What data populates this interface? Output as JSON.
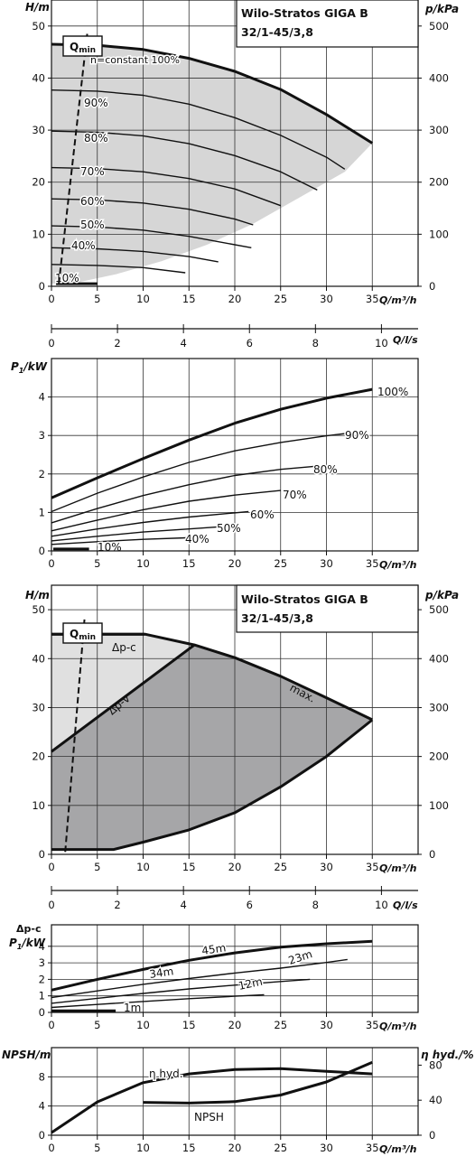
{
  "colors": {
    "ink": "#111111",
    "grid": "#333333",
    "fill_light": "#d6d6d6",
    "fill_dark": "#a6a6a8",
    "fill_pale": "#e0e0e0"
  },
  "chart_data": [
    {
      "id": "hq_variable_speed",
      "type": "line",
      "title": "Wilo-Stratos GIGA B",
      "subtitle": "32/1-45/3,8",
      "xlabel": "Q/m³/h",
      "ylabel": "H/m",
      "y2label": "p/kPa",
      "xlim": [
        0,
        40
      ],
      "ylim": [
        0,
        55
      ],
      "y2lim": [
        0,
        550
      ],
      "xticks": [
        0,
        5,
        10,
        15,
        20,
        25,
        30,
        35
      ],
      "yticks": [
        0,
        10,
        20,
        30,
        40,
        50
      ],
      "y2ticks": [
        0,
        100,
        200,
        300,
        400,
        500
      ],
      "grid": true,
      "qmin_label": "Q",
      "qmin_sub": "min",
      "qmin_line": [
        [
          0.8,
          0.5
        ],
        [
          3.9,
          48.5
        ]
      ],
      "op_range": [
        [
          0,
          46.5
        ],
        [
          5,
          46.3
        ],
        [
          10,
          45.5
        ],
        [
          15,
          43.8
        ],
        [
          20,
          41.3
        ],
        [
          25,
          37.8
        ],
        [
          30,
          33
        ],
        [
          35,
          27.5
        ],
        [
          32,
          22
        ],
        [
          27,
          17
        ],
        [
          22,
          12
        ],
        [
          17,
          8
        ],
        [
          12,
          4.8
        ],
        [
          7,
          2.3
        ],
        [
          3,
          0.8
        ],
        [
          0,
          0.5
        ]
      ],
      "series": [
        {
          "name": "n=constant 100%",
          "bold": true,
          "x": [
            0,
            5,
            10,
            15,
            20,
            25,
            30,
            35
          ],
          "y": [
            46.5,
            46.3,
            45.5,
            43.8,
            41.3,
            37.8,
            33,
            27.5
          ]
        },
        {
          "name": "90%",
          "x": [
            0,
            5,
            10,
            15,
            20,
            25,
            30,
            32
          ],
          "y": [
            37.7,
            37.5,
            36.7,
            35,
            32.4,
            29,
            24.8,
            22.5
          ]
        },
        {
          "name": "80%",
          "x": [
            0,
            5,
            10,
            15,
            20,
            25,
            29
          ],
          "y": [
            29.8,
            29.6,
            28.9,
            27.4,
            25.1,
            22,
            18.5
          ]
        },
        {
          "name": "70%",
          "x": [
            0,
            5,
            10,
            15,
            20,
            25
          ],
          "y": [
            22.8,
            22.6,
            22,
            20.7,
            18.7,
            15.5
          ]
        },
        {
          "name": "60%",
          "x": [
            0,
            5,
            10,
            15,
            20,
            22
          ],
          "y": [
            16.8,
            16.6,
            16,
            14.8,
            12.9,
            11.8
          ]
        },
        {
          "name": "50%",
          "x": [
            0,
            5,
            10,
            15,
            21.8
          ],
          "y": [
            11.6,
            11.4,
            10.8,
            9.6,
            7.4
          ]
        },
        {
          "name": "40%",
          "x": [
            0,
            5,
            10,
            15,
            18.2
          ],
          "y": [
            7.4,
            7.2,
            6.7,
            5.7,
            4.7
          ]
        },
        {
          "name": "",
          "x": [
            0,
            5,
            10,
            14.6
          ],
          "y": [
            4.2,
            4,
            3.6,
            2.6
          ]
        },
        {
          "name": "10%",
          "bold": true,
          "x": [
            0.5,
            5
          ],
          "y": [
            0.5,
            0.5
          ]
        }
      ]
    },
    {
      "id": "q_ls_axis_1",
      "type": "axis",
      "xlabel": "Q/l/s",
      "xlim": [
        0,
        11.111
      ],
      "xticks": [
        0,
        2,
        4,
        6,
        8,
        10
      ]
    },
    {
      "id": "power",
      "type": "line",
      "xlabel": "Q/m³/h",
      "ylabel_main": "P",
      "ylabel_sub": "1",
      "ylabel_unit": "/kW",
      "xlim": [
        0,
        40
      ],
      "ylim": [
        0,
        5
      ],
      "xticks": [
        0,
        5,
        10,
        15,
        20,
        25,
        30,
        35
      ],
      "yticks": [
        0,
        1,
        2,
        3,
        4
      ],
      "grid": true,
      "series": [
        {
          "name": "100%",
          "bold": true,
          "x": [
            0,
            5,
            10,
            15,
            20,
            25,
            30,
            35
          ],
          "y": [
            1.38,
            1.9,
            2.4,
            2.88,
            3.32,
            3.68,
            3.97,
            4.2
          ]
        },
        {
          "name": "90%",
          "x": [
            0,
            5,
            10,
            15,
            20,
            25,
            30,
            32
          ],
          "y": [
            1.02,
            1.5,
            1.92,
            2.3,
            2.6,
            2.82,
            2.99,
            3.05
          ]
        },
        {
          "name": "80%",
          "x": [
            0,
            5,
            10,
            15,
            20,
            25,
            28.8
          ],
          "y": [
            0.73,
            1.1,
            1.44,
            1.72,
            1.96,
            2.12,
            2.2
          ]
        },
        {
          "name": "70%",
          "x": [
            0,
            5,
            10,
            15,
            20,
            25
          ],
          "y": [
            0.52,
            0.8,
            1.07,
            1.29,
            1.45,
            1.57
          ]
        },
        {
          "name": "60%",
          "x": [
            0,
            5,
            10,
            15,
            21.5
          ],
          "y": [
            0.38,
            0.57,
            0.74,
            0.88,
            1.02
          ]
        },
        {
          "name": "50%",
          "x": [
            0,
            5,
            10,
            15,
            18
          ],
          "y": [
            0.26,
            0.38,
            0.49,
            0.57,
            0.62
          ]
        },
        {
          "name": "40%",
          "x": [
            0,
            5,
            10,
            14.7
          ],
          "y": [
            0.17,
            0.24,
            0.3,
            0.34
          ]
        },
        {
          "name": "10%",
          "bold": true,
          "x": [
            0.2,
            4.1
          ],
          "y": [
            0.05,
            0.05
          ]
        }
      ]
    },
    {
      "id": "hq_control_modes",
      "type": "area",
      "title": "Wilo-Stratos GIGA B",
      "subtitle": "32/1-45/3,8",
      "xlabel": "Q/m³/h",
      "ylabel": "H/m",
      "y2label": "p/kPa",
      "xlim": [
        0,
        40
      ],
      "ylim": [
        0,
        55
      ],
      "y2lim": [
        0,
        550
      ],
      "xticks": [
        0,
        5,
        10,
        15,
        20,
        25,
        30,
        35
      ],
      "yticks": [
        0,
        10,
        20,
        30,
        40,
        50
      ],
      "y2ticks": [
        0,
        100,
        200,
        300,
        400,
        500
      ],
      "grid": true,
      "qmin_label": "Q",
      "qmin_sub": "min",
      "qmin_line": [
        [
          1.5,
          0.5
        ],
        [
          3.6,
          48
        ]
      ],
      "dpc_region": [
        [
          0,
          45
        ],
        [
          10.2,
          45
        ],
        [
          15.6,
          42.8
        ],
        [
          0,
          21
        ]
      ],
      "dpv_region": [
        [
          0,
          21
        ],
        [
          15.6,
          42.8
        ],
        [
          20,
          40.2
        ],
        [
          25,
          36.4
        ],
        [
          30,
          32
        ],
        [
          35,
          27.5
        ],
        [
          30,
          20
        ],
        [
          25,
          13.8
        ],
        [
          20,
          8.5
        ],
        [
          15,
          5
        ],
        [
          10,
          2.5
        ],
        [
          6.8,
          1
        ],
        [
          0,
          1
        ]
      ],
      "series": [
        {
          "name": "max.",
          "bold": true,
          "x": [
            0,
            10.2,
            15.6,
            20,
            25,
            30,
            35
          ],
          "y": [
            45,
            45,
            42.8,
            40.2,
            36.4,
            32,
            27.5
          ]
        },
        {
          "name": "Δp-c",
          "bold": true,
          "x": [
            0,
            10.2
          ],
          "y": [
            45,
            45
          ]
        },
        {
          "name": "Δp-v",
          "bold": true,
          "x": [
            0,
            15.6
          ],
          "y": [
            21,
            42.8
          ]
        },
        {
          "name": "",
          "bold": true,
          "x": [
            35,
            30,
            25,
            20,
            15,
            10,
            6.8,
            0
          ],
          "y": [
            27.5,
            20,
            13.8,
            8.5,
            5,
            2.5,
            1,
            1
          ]
        }
      ]
    },
    {
      "id": "q_ls_axis_2",
      "type": "axis",
      "xlabel": "Q/l/s",
      "xlim": [
        0,
        11.111
      ],
      "xticks": [
        0,
        2,
        4,
        6,
        8,
        10
      ]
    },
    {
      "id": "dpc_power",
      "type": "line",
      "xlabel": "Q/m³/h",
      "ylabel_top": "Δp-c",
      "ylabel_main": "P",
      "ylabel_sub": "1",
      "ylabel_unit": "/kW",
      "xlim": [
        0,
        40
      ],
      "ylim": [
        0,
        5.3
      ],
      "xticks": [
        0,
        5,
        10,
        15,
        20,
        25,
        30,
        35
      ],
      "yticks": [
        0,
        1,
        2,
        3,
        4
      ],
      "grid": true,
      "series": [
        {
          "name": "45m",
          "bold": true,
          "x": [
            0,
            5,
            10,
            15,
            20,
            25,
            30,
            35
          ],
          "y": [
            1.35,
            2,
            2.6,
            3.15,
            3.6,
            3.95,
            4.15,
            4.3
          ]
        },
        {
          "name": "34m",
          "x": [
            0,
            5,
            10,
            15,
            20,
            25,
            30,
            32.3
          ],
          "y": [
            0.9,
            1.3,
            1.7,
            2.05,
            2.38,
            2.68,
            3.02,
            3.2
          ]
        },
        {
          "name": "23m",
          "x": [
            0,
            5,
            10,
            15,
            20,
            25,
            28.2
          ],
          "y": [
            0.55,
            0.85,
            1.15,
            1.42,
            1.65,
            1.87,
            2
          ]
        },
        {
          "name": "12m",
          "x": [
            0,
            5,
            10,
            15,
            20,
            23.2
          ],
          "y": [
            0.3,
            0.48,
            0.66,
            0.83,
            0.98,
            1.07
          ]
        },
        {
          "name": "1m",
          "bold": true,
          "x": [
            0,
            7
          ],
          "y": [
            0.1,
            0.1
          ]
        }
      ]
    },
    {
      "id": "npsh_efficiency",
      "type": "line",
      "xlabel": "Q/m³/h",
      "ylabel": "NPSH/m",
      "y2label": "η hyd./%",
      "xlim": [
        0,
        40
      ],
      "ylim": [
        0,
        12
      ],
      "y2lim": [
        0,
        100
      ],
      "xticks": [
        0,
        5,
        10,
        15,
        20,
        25,
        30,
        35
      ],
      "yticks": [
        0,
        4,
        8
      ],
      "y2ticks": [
        0,
        40,
        80
      ],
      "grid": true,
      "series": [
        {
          "name": "η hyd.",
          "axis": "y2",
          "bold": true,
          "x": [
            0,
            5,
            10,
            15,
            20,
            25,
            30,
            35
          ],
          "y": [
            3,
            38,
            60,
            70,
            75,
            76,
            73,
            70
          ]
        },
        {
          "name": "NPSH",
          "axis": "y",
          "bold": true,
          "x": [
            10,
            15,
            20,
            25,
            30,
            35
          ],
          "y": [
            4.5,
            4.4,
            4.6,
            5.5,
            7.3,
            10
          ]
        }
      ]
    }
  ]
}
